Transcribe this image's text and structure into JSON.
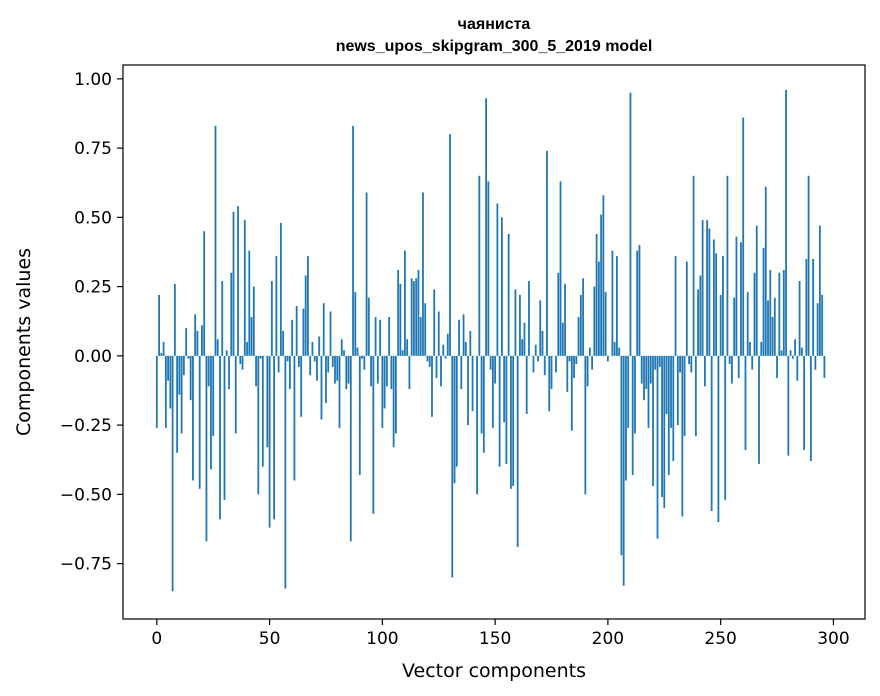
{
  "chart_data": {
    "type": "bar",
    "title_line1": "чаяниста",
    "title_line2": "news_upos_skipgram_300_5_2019 model",
    "xlabel": "Vector components",
    "ylabel": "Components values",
    "xlim": [
      -15,
      314
    ],
    "ylim": [
      -0.95,
      1.05
    ],
    "x_ticks": [
      0,
      50,
      100,
      150,
      200,
      250,
      300
    ],
    "y_ticks": [
      1.0,
      0.75,
      0.5,
      0.25,
      0.0,
      -0.25,
      -0.5,
      -0.75
    ],
    "y_tick_labels": [
      "1.00",
      "0.75",
      "0.50",
      "0.25",
      "0.00",
      "−0.25",
      "−0.50",
      "−0.75"
    ],
    "bar_color": "#1f77b4",
    "values": [
      -0.26,
      0.22,
      0.01,
      0.05,
      -0.26,
      -0.09,
      -0.19,
      -0.85,
      0.26,
      -0.35,
      -0.14,
      -0.28,
      -0.07,
      0.1,
      -0.01,
      -0.16,
      -0.45,
      0.15,
      0.09,
      -0.48,
      0.11,
      0.45,
      -0.67,
      -0.11,
      -0.41,
      -0.29,
      0.83,
      0.06,
      -0.59,
      0.27,
      -0.52,
      0.02,
      -0.12,
      0.3,
      0.52,
      -0.28,
      0.54,
      -0.03,
      -0.05,
      0.49,
      0.05,
      0.38,
      0.14,
      0.25,
      -0.11,
      -0.5,
      -0.01,
      -0.4,
      0.0,
      -0.33,
      -0.62,
      0.27,
      -0.59,
      0.36,
      -0.06,
      0.48,
      0.09,
      -0.84,
      -0.02,
      -0.12,
      0.13,
      -0.45,
      0.18,
      -0.04,
      -0.22,
      0.17,
      0.29,
      0.36,
      -0.07,
      0.05,
      -0.02,
      -0.09,
      0.07,
      -0.23,
      0.19,
      -0.17,
      -0.06,
      0.16,
      -0.04,
      -0.1,
      -0.09,
      -0.26,
      0.06,
      0.02,
      -0.12,
      -0.1,
      -0.67,
      0.83,
      0.23,
      0.03,
      -0.43,
      -0.01,
      -0.05,
      0.59,
      0.21,
      -0.11,
      -0.57,
      0.14,
      -0.1,
      0.13,
      -0.26,
      -0.19,
      -0.11,
      0.14,
      -0.12,
      -0.33,
      -0.28,
      0.31,
      0.26,
      0.02,
      0.38,
      0.06,
      -0.12,
      0.28,
      0.27,
      0.28,
      0.31,
      0.14,
      0.59,
      0.19,
      -0.02,
      -0.04,
      -0.22,
      0.24,
      -0.08,
      0.16,
      -0.11,
      0.04,
      -0.01,
      0.08,
      0.8,
      -0.8,
      -0.46,
      -0.4,
      0.13,
      -0.12,
      0.15,
      0.05,
      -0.25,
      0.09,
      -0.2,
      0.0,
      -0.5,
      0.65,
      -0.28,
      -0.35,
      0.93,
      0.63,
      -0.05,
      -0.26,
      -0.1,
      0.55,
      -0.4,
      0.5,
      -0.24,
      -0.39,
      0.44,
      -0.48,
      -0.47,
      0.24,
      -0.69,
      0.22,
      0.06,
      0.12,
      -0.21,
      0.27,
      0.0,
      -0.06,
      0.04,
      -0.02,
      0.2,
      0.09,
      -0.07,
      0.74,
      -0.2,
      -0.12,
      0.0,
      -0.06,
      0.3,
      0.63,
      0.12,
      0.26,
      -0.13,
      -0.02,
      -0.27,
      -0.08,
      -0.03,
      0.14,
      0.22,
      0.28,
      -0.5,
      -0.11,
      0.03,
      -0.05,
      0.25,
      0.44,
      0.34,
      0.51,
      0.58,
      0.23,
      -0.02,
      0.0,
      0.38,
      0.05,
      0.36,
      0.03,
      -0.72,
      -0.83,
      -0.45,
      -0.26,
      0.95,
      -0.43,
      -0.28,
      0.38,
      0.4,
      -0.1,
      -0.16,
      -0.12,
      -0.26,
      -0.1,
      -0.47,
      -0.05,
      -0.66,
      -0.04,
      -0.51,
      -0.55,
      -0.21,
      -0.43,
      -0.26,
      -0.38,
      0.36,
      -0.25,
      -0.06,
      -0.58,
      -0.29,
      0.34,
      -0.03,
      -0.06,
      0.65,
      -0.29,
      0.24,
      0.29,
      0.49,
      -0.11,
      0.49,
      0.46,
      -0.56,
      0.42,
      0.37,
      -0.6,
      0.22,
      0.36,
      -0.52,
      0.65,
      -0.03,
      -0.1,
      0.21,
      0.43,
      -0.08,
      0.41,
      0.86,
      -0.34,
      0.23,
      0.05,
      -0.05,
      0.3,
      0.47,
      -0.39,
      0.05,
      0.39,
      0.61,
      0.2,
      0.31,
      0.14,
      0.21,
      -0.08,
      0.3,
      0.02,
      0.31,
      0.96,
      -0.36,
      0.02,
      -0.01,
      0.06,
      -0.09,
      0.27,
      0.03,
      -0.34,
      0.35,
      0.65,
      -0.38,
      0.35,
      -0.05,
      0.19,
      0.47,
      0.22,
      -0.08
    ]
  }
}
